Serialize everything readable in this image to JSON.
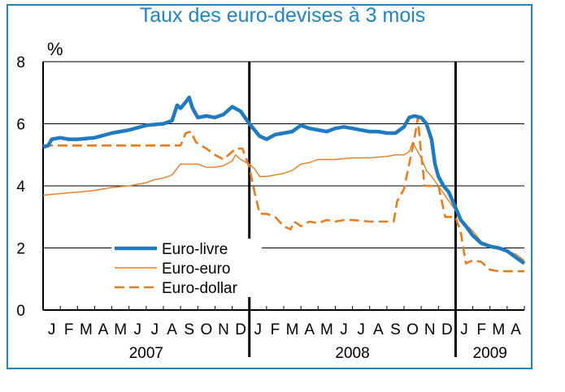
{
  "chart_data": {
    "type": "line",
    "title": "Taux des euro-devises à 3 mois",
    "ylabel": "%",
    "ylim": [
      0,
      8
    ],
    "yticks": [
      0,
      2,
      4,
      6,
      8
    ],
    "xlim": [
      0,
      28
    ],
    "grid": "horizontal",
    "legend_position": "bottom-left",
    "month_labels": [
      "J",
      "F",
      "M",
      "A",
      "M",
      "J",
      "J",
      "A",
      "S",
      "O",
      "N",
      "D",
      "J",
      "F",
      "M",
      "A",
      "M",
      "J",
      "J",
      "A",
      "S",
      "O",
      "N",
      "D",
      "J",
      "F",
      "M",
      "A"
    ],
    "years": [
      {
        "label": "2007",
        "start": 0,
        "end": 12
      },
      {
        "label": "2008",
        "start": 12,
        "end": 24
      },
      {
        "label": "2009",
        "start": 24,
        "end": 28
      }
    ],
    "colors": {
      "euro_livre": "#1f7ac0",
      "euro_euro": "#e87d1e",
      "euro_dollar": "#e87d1e",
      "accent": "#1f86c2"
    },
    "series": [
      {
        "name": "Euro-livre",
        "style": "thick",
        "x": [
          0,
          0.3,
          0.5,
          1,
          1.5,
          2,
          3,
          4,
          5,
          6,
          7,
          7.5,
          7.8,
          8,
          8.3,
          8.5,
          8.7,
          9,
          9.5,
          10,
          10.5,
          11,
          11.5,
          12,
          12.3,
          12.6,
          13,
          13.5,
          14,
          14.5,
          15,
          15.5,
          16,
          16.5,
          17,
          17.5,
          18,
          18.5,
          19,
          19.5,
          20,
          20.5,
          21,
          21.3,
          21.6,
          22,
          22.3,
          22.6,
          22.8,
          23,
          23.3,
          23.6,
          24,
          24.3,
          24.6,
          25,
          25.5,
          26,
          26.5,
          27,
          27.5,
          28
        ],
        "values": [
          5.25,
          5.3,
          5.5,
          5.55,
          5.5,
          5.5,
          5.55,
          5.7,
          5.8,
          5.95,
          6.0,
          6.1,
          6.6,
          6.5,
          6.7,
          6.85,
          6.5,
          6.2,
          6.25,
          6.2,
          6.3,
          6.55,
          6.4,
          6.0,
          5.8,
          5.6,
          5.5,
          5.65,
          5.7,
          5.75,
          5.95,
          5.85,
          5.8,
          5.75,
          5.85,
          5.9,
          5.85,
          5.8,
          5.75,
          5.75,
          5.7,
          5.7,
          5.9,
          6.2,
          6.25,
          6.2,
          6.0,
          5.5,
          4.7,
          4.3,
          4.0,
          3.8,
          3.3,
          2.9,
          2.7,
          2.4,
          2.15,
          2.05,
          2.0,
          1.9,
          1.7,
          1.5
        ]
      },
      {
        "name": "Euro-euro",
        "style": "thin",
        "x": [
          0,
          1,
          2,
          3,
          4,
          5,
          6,
          6.5,
          7,
          7.5,
          8,
          8.5,
          9,
          9.5,
          10,
          10.5,
          11,
          11.2,
          11.5,
          12,
          12.3,
          12.6,
          13,
          13.5,
          14,
          14.5,
          15,
          15.5,
          16,
          17,
          18,
          19,
          20,
          20.5,
          21,
          21.3,
          21.5,
          21.7,
          22,
          22.3,
          22.6,
          23,
          23.5,
          24,
          24.5,
          25,
          25.5,
          26,
          26.5,
          27,
          27.5,
          28
        ],
        "values": [
          3.7,
          3.75,
          3.8,
          3.85,
          3.95,
          4.0,
          4.1,
          4.2,
          4.25,
          4.35,
          4.7,
          4.7,
          4.7,
          4.6,
          4.6,
          4.65,
          4.8,
          5.0,
          4.85,
          4.7,
          4.55,
          4.3,
          4.3,
          4.35,
          4.4,
          4.5,
          4.7,
          4.75,
          4.85,
          4.85,
          4.9,
          4.9,
          4.95,
          5.0,
          5.0,
          5.1,
          5.4,
          5.2,
          4.9,
          4.5,
          4.3,
          4.0,
          3.6,
          3.2,
          2.8,
          2.55,
          2.2,
          2.1,
          2.0,
          1.9,
          1.8,
          1.6
        ]
      },
      {
        "name": "Euro-dollar",
        "style": "dashed",
        "x": [
          0,
          3,
          6,
          7,
          8,
          8.3,
          8.6,
          8.9,
          9.5,
          10,
          10.5,
          11,
          11.2,
          11.6,
          12,
          12.3,
          12.6,
          13,
          13.5,
          14,
          14.4,
          14.6,
          15,
          15.5,
          16,
          16.5,
          17,
          17.5,
          18,
          19,
          20,
          20.4,
          20.6,
          21,
          21.3,
          21.6,
          21.8,
          22,
          22.2,
          22.5,
          23,
          23.4,
          23.7,
          24,
          24.3,
          24.6,
          25,
          25.5,
          26,
          26.5,
          27,
          28
        ],
        "values": [
          5.3,
          5.3,
          5.3,
          5.3,
          5.3,
          5.7,
          5.75,
          5.4,
          5.2,
          5.0,
          4.85,
          5.1,
          5.2,
          5.2,
          4.6,
          3.8,
          3.1,
          3.1,
          3.0,
          2.7,
          2.6,
          2.85,
          2.7,
          2.85,
          2.8,
          2.9,
          2.85,
          2.9,
          2.9,
          2.85,
          2.85,
          2.85,
          3.5,
          3.9,
          4.7,
          5.5,
          6.2,
          5.0,
          4.0,
          4.0,
          4.0,
          3.0,
          3.0,
          3.0,
          2.5,
          1.5,
          1.6,
          1.55,
          1.3,
          1.25,
          1.25,
          1.25
        ]
      }
    ]
  }
}
